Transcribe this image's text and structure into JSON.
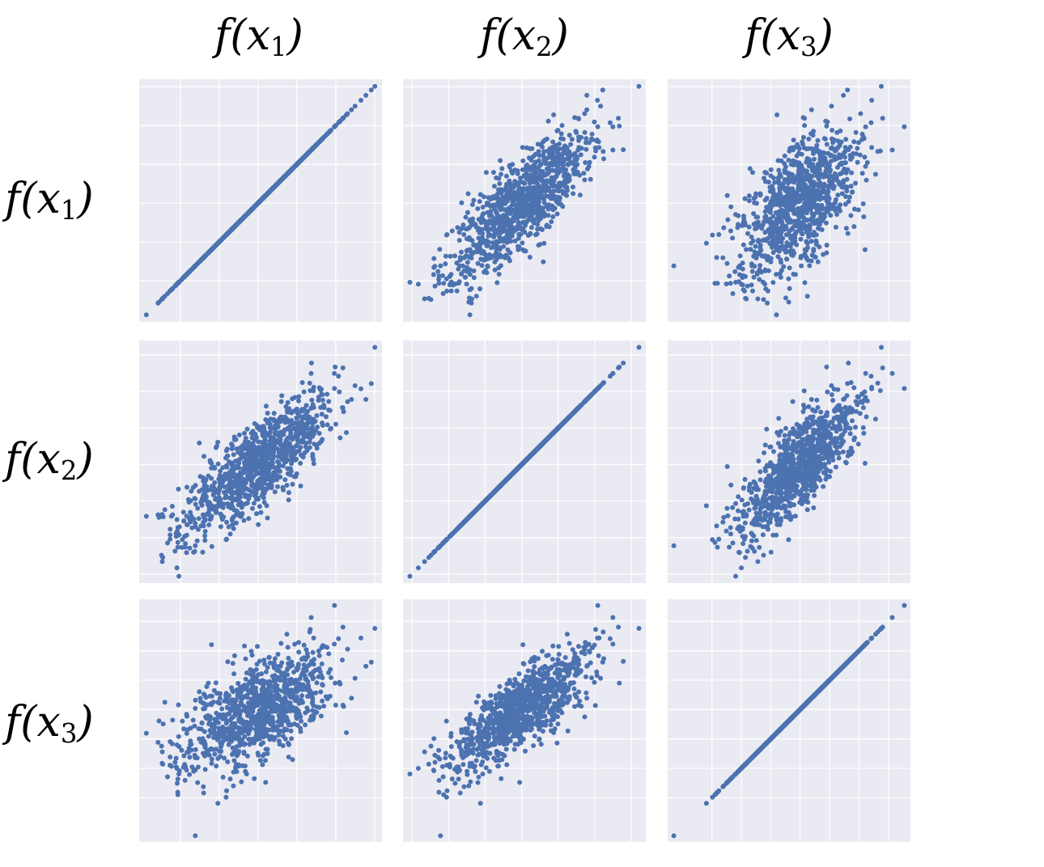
{
  "labels": {
    "columns": [
      {
        "base": "f(x",
        "sub": "1",
        "close": ")"
      },
      {
        "base": "f(x",
        "sub": "2",
        "close": ")"
      },
      {
        "base": "f(x",
        "sub": "3",
        "close": ")"
      }
    ],
    "rows": [
      {
        "base": "f(x",
        "sub": "1",
        "close": ")"
      },
      {
        "base": "f(x",
        "sub": "2",
        "close": ")"
      },
      {
        "base": "f(x",
        "sub": "3",
        "close": ")"
      }
    ]
  },
  "colors": {
    "panel_bg": "#eaeaf2",
    "grid": "#ffffff",
    "point": "#4c72b0"
  },
  "chart_data": {
    "type": "scatter",
    "layout": "pairwise-matrix",
    "grid": true,
    "n_points_per_panel": 1000,
    "variables": [
      "f(x1)",
      "f(x2)",
      "f(x3)"
    ],
    "correlation_matrix": [
      [
        1.0,
        0.8,
        0.6
      ],
      [
        0.8,
        1.0,
        0.8
      ],
      [
        0.6,
        0.8,
        1.0
      ]
    ],
    "axis_range": [
      -3.5,
      3.5
    ],
    "tick_values": [
      -3,
      -2,
      -1,
      0,
      1,
      2,
      3
    ],
    "tick_labels_shown": false
  }
}
